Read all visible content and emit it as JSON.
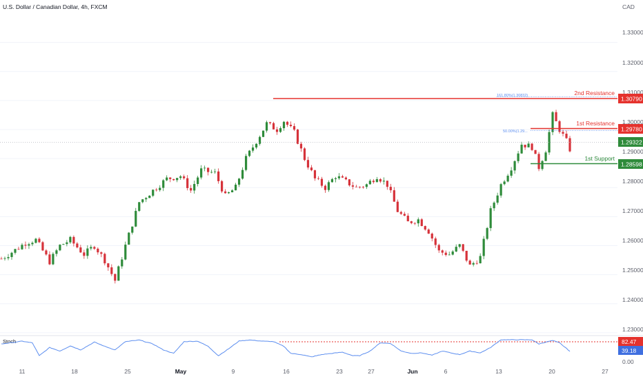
{
  "header": {
    "title": "U.S. Dollar / Canadian Dollar, 4h, FXCM"
  },
  "colors": {
    "up": "#2e8b3a",
    "down": "#d6323a",
    "resistance": "#e5322d",
    "support": "#2e8b3a",
    "current": "#2e8b3a",
    "stoch": "#5b8def",
    "stoch_label": "#3f6fe0",
    "fib": "#5b8def",
    "grid": "#f0f3fa",
    "axis_text": "#5d606b"
  },
  "chart_data": [
    {
      "type": "candlestick",
      "title": "U.S. Dollar / Canadian Dollar, 4h, FXCM",
      "currency": "CAD",
      "y_ticks": [
        "1.33000",
        "1.32000",
        "1.31000",
        "1.30000",
        "1.29000",
        "1.28000",
        "1.27000",
        "1.26000",
        "1.25000",
        "1.24000",
        "1.23000"
      ],
      "ylim": [
        1.2295,
        1.3375
      ],
      "x_ticks": [
        "11",
        "18",
        "25",
        "May",
        "9",
        "16",
        "23",
        "27",
        "Jun",
        "6",
        "13",
        "20",
        "27"
      ],
      "anchors": [
        {
          "t": 0,
          "p": 1.2555
        },
        {
          "t": 4,
          "p": 1.2585
        },
        {
          "t": 7,
          "p": 1.261
        },
        {
          "t": 10,
          "p": 1.262
        },
        {
          "t": 14,
          "p": 1.2545
        },
        {
          "t": 17,
          "p": 1.26
        },
        {
          "t": 20,
          "p": 1.262
        },
        {
          "t": 24,
          "p": 1.257
        },
        {
          "t": 27,
          "p": 1.26
        },
        {
          "t": 30,
          "p": 1.255
        },
        {
          "t": 33,
          "p": 1.248
        },
        {
          "t": 36,
          "p": 1.26
        },
        {
          "t": 40,
          "p": 1.275
        },
        {
          "t": 44,
          "p": 1.279
        },
        {
          "t": 48,
          "p": 1.283
        },
        {
          "t": 52,
          "p": 1.284
        },
        {
          "t": 55,
          "p": 1.279
        },
        {
          "t": 58,
          "p": 1.286
        },
        {
          "t": 62,
          "p": 1.285
        },
        {
          "t": 65,
          "p": 1.277
        },
        {
          "t": 68,
          "p": 1.28
        },
        {
          "t": 71,
          "p": 1.29
        },
        {
          "t": 74,
          "p": 1.296
        },
        {
          "t": 77,
          "p": 1.302
        },
        {
          "t": 80,
          "p": 1.3
        },
        {
          "t": 82,
          "p": 1.303
        },
        {
          "t": 85,
          "p": 1.299
        },
        {
          "t": 88,
          "p": 1.29
        },
        {
          "t": 91,
          "p": 1.283
        },
        {
          "t": 94,
          "p": 1.28
        },
        {
          "t": 97,
          "p": 1.284
        },
        {
          "t": 100,
          "p": 1.282
        },
        {
          "t": 103,
          "p": 1.28
        },
        {
          "t": 106,
          "p": 1.281
        },
        {
          "t": 109,
          "p": 1.284
        },
        {
          "t": 112,
          "p": 1.281
        },
        {
          "t": 115,
          "p": 1.272
        },
        {
          "t": 118,
          "p": 1.268
        },
        {
          "t": 121,
          "p": 1.269
        },
        {
          "t": 124,
          "p": 1.265
        },
        {
          "t": 127,
          "p": 1.258
        },
        {
          "t": 130,
          "p": 1.257
        },
        {
          "t": 133,
          "p": 1.26
        },
        {
          "t": 136,
          "p": 1.253
        },
        {
          "t": 139,
          "p": 1.256
        },
        {
          "t": 142,
          "p": 1.272
        },
        {
          "t": 145,
          "p": 1.281
        },
        {
          "t": 148,
          "p": 1.287
        },
        {
          "t": 151,
          "p": 1.295
        },
        {
          "t": 154,
          "p": 1.294
        },
        {
          "t": 156,
          "p": 1.287
        },
        {
          "t": 158,
          "p": 1.293
        },
        {
          "t": 160,
          "p": 1.305
        },
        {
          "t": 162,
          "p": 1.3
        },
        {
          "t": 164,
          "p": 1.296
        },
        {
          "t": 165,
          "p": 1.2932
        }
      ],
      "levels": [
        {
          "name": "2nd Resistance",
          "value": "1.30790"
        },
        {
          "name": "1st Resistance",
          "value": "1.29780"
        },
        {
          "name": "1st Support",
          "value": "1.28598"
        }
      ],
      "current_price": "1.29322",
      "fib_labels": [
        "161.80%(1.30832)",
        "50.00%(1.29..."
      ]
    },
    {
      "type": "line",
      "name": "Stoch",
      "ylim": [
        0,
        100
      ],
      "y_ticks": [
        "0.00"
      ],
      "overbought_value": "82.47",
      "current_value": "39.18",
      "anchors": [
        {
          "t": 0,
          "v": 70
        },
        {
          "t": 6,
          "v": 82
        },
        {
          "t": 9,
          "v": 75
        },
        {
          "t": 11,
          "v": 20
        },
        {
          "t": 14,
          "v": 55
        },
        {
          "t": 17,
          "v": 40
        },
        {
          "t": 20,
          "v": 62
        },
        {
          "t": 23,
          "v": 45
        },
        {
          "t": 27,
          "v": 78
        },
        {
          "t": 30,
          "v": 60
        },
        {
          "t": 33,
          "v": 45
        },
        {
          "t": 36,
          "v": 80
        },
        {
          "t": 40,
          "v": 87
        },
        {
          "t": 44,
          "v": 70
        },
        {
          "t": 47,
          "v": 45
        },
        {
          "t": 50,
          "v": 30
        },
        {
          "t": 53,
          "v": 80
        },
        {
          "t": 57,
          "v": 82
        },
        {
          "t": 60,
          "v": 60
        },
        {
          "t": 63,
          "v": 20
        },
        {
          "t": 66,
          "v": 50
        },
        {
          "t": 69,
          "v": 83
        },
        {
          "t": 72,
          "v": 87
        },
        {
          "t": 76,
          "v": 82
        },
        {
          "t": 79,
          "v": 80
        },
        {
          "t": 82,
          "v": 60
        },
        {
          "t": 84,
          "v": 30
        },
        {
          "t": 87,
          "v": 25
        },
        {
          "t": 90,
          "v": 15
        },
        {
          "t": 93,
          "v": 25
        },
        {
          "t": 96,
          "v": 30
        },
        {
          "t": 99,
          "v": 35
        },
        {
          "t": 102,
          "v": 20
        },
        {
          "t": 104,
          "v": 20
        },
        {
          "t": 107,
          "v": 40
        },
        {
          "t": 110,
          "v": 75
        },
        {
          "t": 113,
          "v": 72
        },
        {
          "t": 116,
          "v": 40
        },
        {
          "t": 119,
          "v": 30
        },
        {
          "t": 122,
          "v": 32
        },
        {
          "t": 125,
          "v": 22
        },
        {
          "t": 128,
          "v": 40
        },
        {
          "t": 131,
          "v": 30
        },
        {
          "t": 133,
          "v": 25
        },
        {
          "t": 136,
          "v": 40
        },
        {
          "t": 139,
          "v": 32
        },
        {
          "t": 142,
          "v": 55
        },
        {
          "t": 145,
          "v": 88
        },
        {
          "t": 150,
          "v": 88
        },
        {
          "t": 154,
          "v": 88
        },
        {
          "t": 156,
          "v": 70
        },
        {
          "t": 158,
          "v": 78
        },
        {
          "t": 160,
          "v": 85
        },
        {
          "t": 162,
          "v": 75
        },
        {
          "t": 165,
          "v": 39
        }
      ]
    }
  ]
}
